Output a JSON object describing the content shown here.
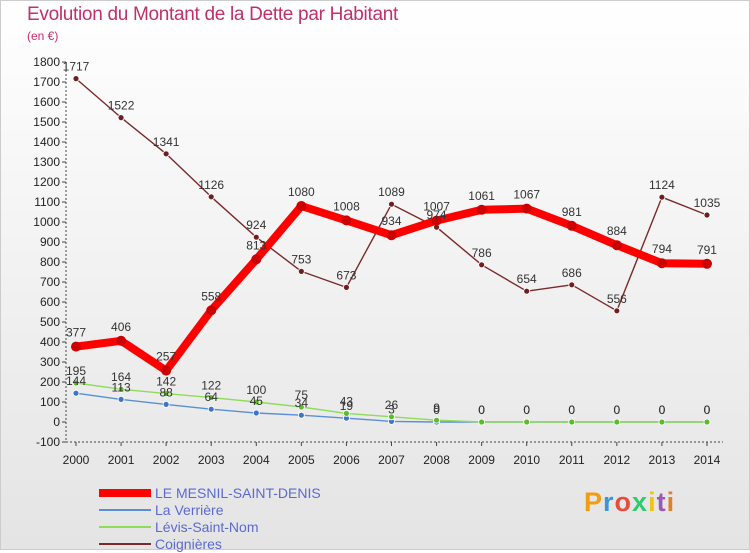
{
  "header": {
    "title": "Evolution du Montant de la Dette par Habitant",
    "unit": "(en €)"
  },
  "brand": {
    "text": "Proxiti",
    "colors": [
      "#f39c12",
      "#3498db",
      "#e74c3c",
      "#2ecc71",
      "#f1c40f",
      "#9b59b6",
      "#e67e22"
    ]
  },
  "chart_data": {
    "type": "line",
    "title": "Evolution du Montant de la Dette par Habitant",
    "ylabel": "(en €)",
    "xlabel": "",
    "ylim": [
      -100,
      1800
    ],
    "yticks": [
      -100,
      0,
      100,
      200,
      300,
      400,
      500,
      600,
      700,
      800,
      900,
      1000,
      1100,
      1200,
      1300,
      1400,
      1500,
      1600,
      1700,
      1800
    ],
    "grid": false,
    "legend_position": "bottom-left",
    "categories": [
      "2000",
      "2001",
      "2002",
      "2003",
      "2004",
      "2005",
      "2006",
      "2007",
      "2008",
      "2009",
      "2010",
      "2011",
      "2012",
      "2013",
      "2014"
    ],
    "series": [
      {
        "name": "LE MESNIL-SAINT-DENIS",
        "color": "#ff0000",
        "marker": "#cc0000",
        "emphasis": true,
        "values": [
          377,
          406,
          257,
          558,
          813,
          1080,
          1008,
          934,
          1007,
          1061,
          1067,
          981,
          884,
          794,
          791
        ],
        "labels": [
          "377",
          "406",
          "257",
          "558",
          "813",
          "1080",
          "1008",
          "934",
          "1007",
          "1061",
          "1067",
          "981",
          "884",
          "794",
          "791"
        ]
      },
      {
        "name": "La Verrière",
        "color": "#5b8fd4",
        "marker": "#3f75c8",
        "emphasis": false,
        "values": [
          144,
          113,
          88,
          64,
          45,
          34,
          19,
          3,
          0,
          0,
          0,
          0,
          0,
          0,
          0
        ],
        "labels": [
          "144",
          "113",
          "88",
          "64",
          "45",
          "34",
          "19",
          "3",
          "0",
          "0",
          "0",
          "0",
          "0",
          "0",
          "0"
        ]
      },
      {
        "name": "Lévis-Saint-Nom",
        "color": "#8fdc5a",
        "marker": "#5ebb2e",
        "emphasis": false,
        "values": [
          195,
          164,
          142,
          122,
          100,
          75,
          43,
          26,
          9,
          0,
          0,
          0,
          0,
          0,
          0
        ],
        "labels": [
          "195",
          "164",
          "142",
          "122",
          "100",
          "75",
          "43",
          "26",
          "9",
          "0",
          "0",
          "0",
          "0",
          "0",
          "0"
        ]
      },
      {
        "name": "Coignières",
        "color": "#7a2a2a",
        "marker": "#6e2020",
        "emphasis": false,
        "values": [
          1717,
          1522,
          1341,
          1126,
          924,
          753,
          673,
          1089,
          974,
          786,
          654,
          686,
          556,
          1124,
          1035
        ],
        "labels": [
          "1717",
          "1522",
          "1341",
          "1126",
          "924",
          "753",
          "673",
          "1089",
          "974",
          "786",
          "654",
          "686",
          "556",
          "1124",
          "1035"
        ]
      }
    ]
  }
}
